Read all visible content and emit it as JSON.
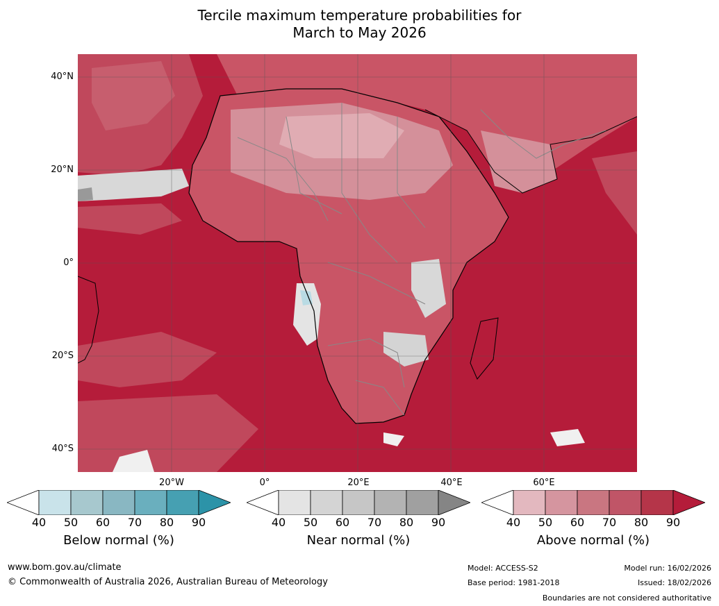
{
  "title_line1": "Tercile maximum temperature probabilities for",
  "title_line2": "March to May 2026",
  "lat_labels": [
    "40°N",
    "20°N",
    "0°",
    "20°S",
    "40°S"
  ],
  "lon_labels": [
    "20°W",
    "0°",
    "20°E",
    "40°E",
    "60°E"
  ],
  "colorbars": [
    {
      "label": "Below normal (%)",
      "ticks": [
        "40",
        "50",
        "60",
        "70",
        "80",
        "90"
      ],
      "colors": [
        "#ffffff",
        "#c9e3ea",
        "#a7c8ce",
        "#89b7c2",
        "#6aafbe",
        "#46a0b2",
        "#2c93a8"
      ]
    },
    {
      "label": "Near normal (%)",
      "ticks": [
        "40",
        "50",
        "60",
        "70",
        "80",
        "90"
      ],
      "colors": [
        "#ffffff",
        "#e4e4e4",
        "#d4d4d4",
        "#c6c6c6",
        "#b3b3b3",
        "#a0a0a0",
        "#858585"
      ]
    },
    {
      "label": "Above normal (%)",
      "ticks": [
        "40",
        "50",
        "60",
        "70",
        "80",
        "90"
      ],
      "colors": [
        "#ffffff",
        "#e3b8bf",
        "#d5959f",
        "#c97681",
        "#c05567",
        "#b53549",
        "#b41c3a"
      ]
    }
  ],
  "footer": {
    "website": "www.bom.gov.au/climate",
    "copyright": "© Commonwealth of Australia 2026, Australian Bureau of Meteorology",
    "model": "Model: ACCESS-S2",
    "base_period": "Base period: 1981-2018",
    "model_run": "Model run: 16/02/2026",
    "issued": "Issued: 18/02/2026",
    "disclaimer": "Boundaries are not considered authoritative"
  },
  "map_colors": {
    "ocean_high": "#b51c3a",
    "land_mid": "#c95566",
    "land_low": "#d4909a",
    "near_normal": "#d8d8d8",
    "below_light": "#b9dbe4",
    "grid": "#555555",
    "coast": "#000000",
    "border": "#888888"
  }
}
